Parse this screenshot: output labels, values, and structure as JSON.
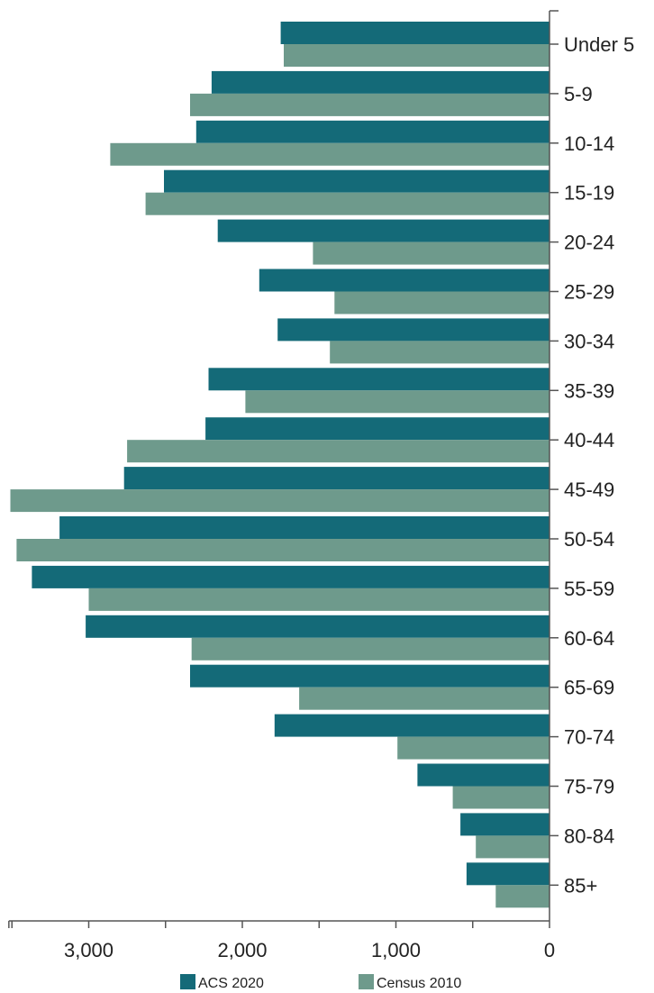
{
  "chart_data": {
    "type": "bar",
    "orientation": "horizontal",
    "reversed_value_axis": true,
    "categories": [
      "Under 5",
      "5-9",
      "10-14",
      "15-19",
      "20-24",
      "25-29",
      "30-34",
      "35-39",
      "40-44",
      "45-49",
      "50-54",
      "55-59",
      "60-64",
      "65-69",
      "70-74",
      "75-79",
      "80-84",
      "85+"
    ],
    "series": [
      {
        "name": "ACS 2020",
        "color": "#146a78",
        "values": [
          1750,
          2200,
          2300,
          2510,
          2160,
          1890,
          1770,
          2220,
          2240,
          2770,
          3190,
          3370,
          3020,
          2340,
          1790,
          860,
          580,
          540
        ]
      },
      {
        "name": "Census 2010",
        "color": "#6e9a8c",
        "values": [
          1730,
          2340,
          2860,
          2630,
          1540,
          1400,
          1430,
          1980,
          2750,
          3510,
          3470,
          3000,
          2330,
          1630,
          990,
          630,
          480,
          350
        ]
      }
    ],
    "xlim": [
      3520,
      0
    ],
    "xticks": [
      3000,
      2000,
      1000,
      0
    ],
    "xtick_labels": [
      "3,000",
      "2,000",
      "1,000",
      "0"
    ],
    "title": "",
    "xlabel": "",
    "ylabel": "",
    "grid": false,
    "legend": "bottom"
  }
}
